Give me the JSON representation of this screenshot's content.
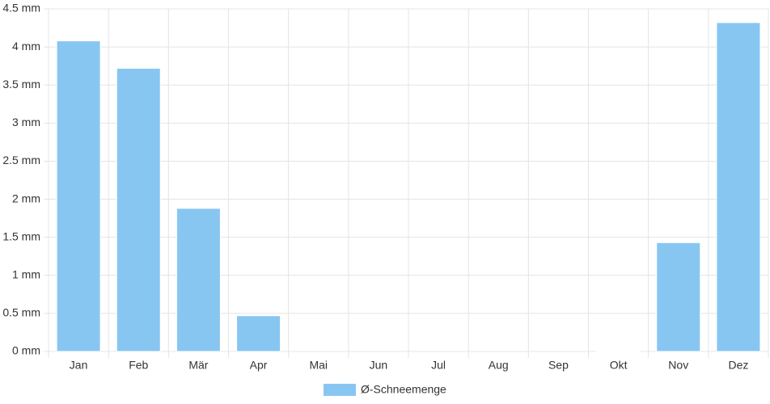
{
  "chart_data": {
    "type": "bar",
    "categories": [
      "Jan",
      "Feb",
      "Mär",
      "Apr",
      "Mai",
      "Jun",
      "Jul",
      "Aug",
      "Sep",
      "Okt",
      "Nov",
      "Dez"
    ],
    "series": [
      {
        "name": "Ø-Schneemenge",
        "color": "#88c6f2",
        "values": [
          4.08,
          3.72,
          1.88,
          0.47,
          0,
          0,
          0,
          0,
          0,
          0.01,
          1.43,
          4.32
        ]
      }
    ],
    "ylim": [
      0,
      4.5
    ],
    "yticks": [
      {
        "value": 0,
        "label": "0 mm"
      },
      {
        "value": 0.5,
        "label": "0.5 mm"
      },
      {
        "value": 1,
        "label": "1 mm"
      },
      {
        "value": 1.5,
        "label": "1.5 mm"
      },
      {
        "value": 2,
        "label": "2 mm"
      },
      {
        "value": 2.5,
        "label": "2.5 mm"
      },
      {
        "value": 3,
        "label": "3 mm"
      },
      {
        "value": 3.5,
        "label": "3.5 mm"
      },
      {
        "value": 4,
        "label": "4 mm"
      },
      {
        "value": 4.5,
        "label": "4.5 mm"
      }
    ],
    "grid": true,
    "legend": "bottom"
  }
}
